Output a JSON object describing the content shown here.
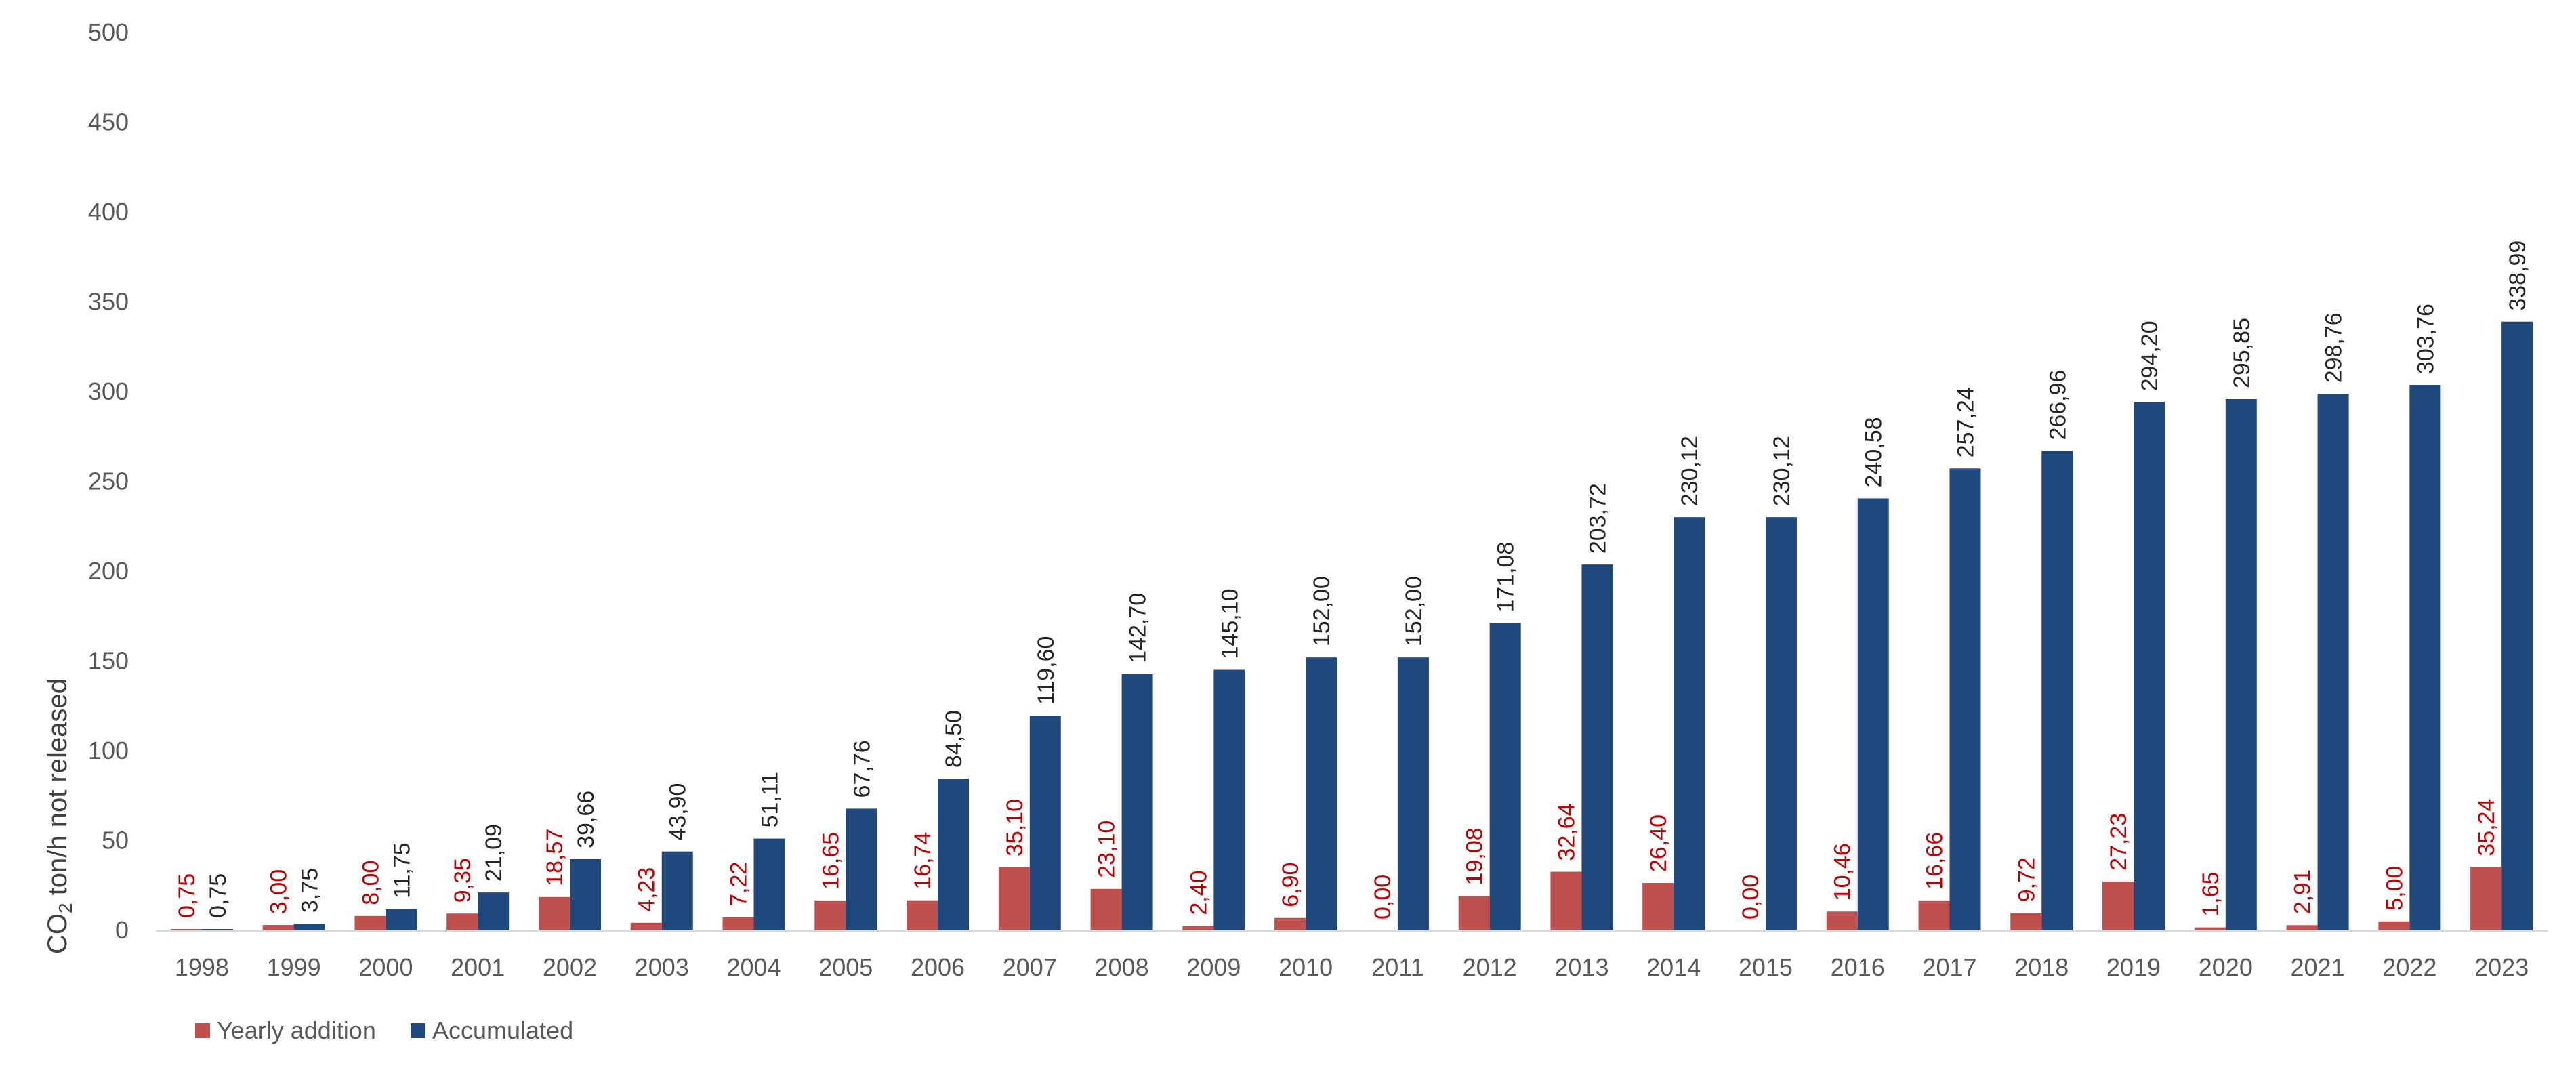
{
  "chart_data": {
    "type": "bar",
    "title": "",
    "xlabel": "",
    "ylabel_main": "CO",
    "ylabel_sub": "2",
    "ylabel_rest": " ton/h not released",
    "ylim": [
      0,
      500
    ],
    "yticks": [
      0,
      50,
      100,
      150,
      200,
      250,
      300,
      350,
      400,
      450,
      500
    ],
    "grid": false,
    "legend_position": "bottom-left",
    "categories": [
      "1998",
      "1999",
      "2000",
      "2001",
      "2002",
      "2003",
      "2004",
      "2005",
      "2006",
      "2007",
      "2008",
      "2009",
      "2010",
      "2011",
      "2012",
      "2013",
      "2014",
      "2015",
      "2016",
      "2017",
      "2018",
      "2019",
      "2020",
      "2021",
      "2022",
      "2023"
    ],
    "series": [
      {
        "name": "Yearly addition",
        "color": "#C0504D",
        "label_color": "#C00000",
        "values": [
          0.75,
          3.0,
          8.0,
          9.35,
          18.57,
          4.23,
          7.22,
          16.65,
          16.74,
          35.1,
          23.1,
          2.4,
          6.9,
          0.0,
          19.08,
          32.64,
          26.4,
          0.0,
          10.46,
          16.66,
          9.72,
          27.23,
          1.65,
          2.91,
          5.0,
          35.24
        ],
        "labels": [
          "0,75",
          "3,00",
          "8,00",
          "9,35",
          "18,57",
          "4,23",
          "7,22",
          "16,65",
          "16,74",
          "35,10",
          "23,10",
          "2,40",
          "6,90",
          "0,00",
          "19,08",
          "32,64",
          "26,40",
          "0,00",
          "10,46",
          "16,66",
          "9,72",
          "27,23",
          "1,65",
          "2,91",
          "5,00",
          "35,24"
        ]
      },
      {
        "name": "Accumulated",
        "color": "#1F497D",
        "label_color": "#262626",
        "values": [
          0.75,
          3.75,
          11.75,
          21.09,
          39.66,
          43.9,
          51.11,
          67.76,
          84.5,
          119.6,
          142.7,
          145.1,
          152.0,
          152.0,
          171.08,
          203.72,
          230.12,
          230.12,
          240.58,
          257.24,
          266.96,
          294.2,
          295.85,
          298.76,
          303.76,
          338.99
        ],
        "labels": [
          "0,75",
          "3,75",
          "11,75",
          "21,09",
          "39,66",
          "43,90",
          "51,11",
          "67,76",
          "84,50",
          "119,60",
          "142,70",
          "145,10",
          "152,00",
          "152,00",
          "171,08",
          "203,72",
          "230,12",
          "230,12",
          "240,58",
          "257,24",
          "266,96",
          "294,20",
          "295,85",
          "298,76",
          "303,76",
          "338,99"
        ]
      }
    ]
  }
}
